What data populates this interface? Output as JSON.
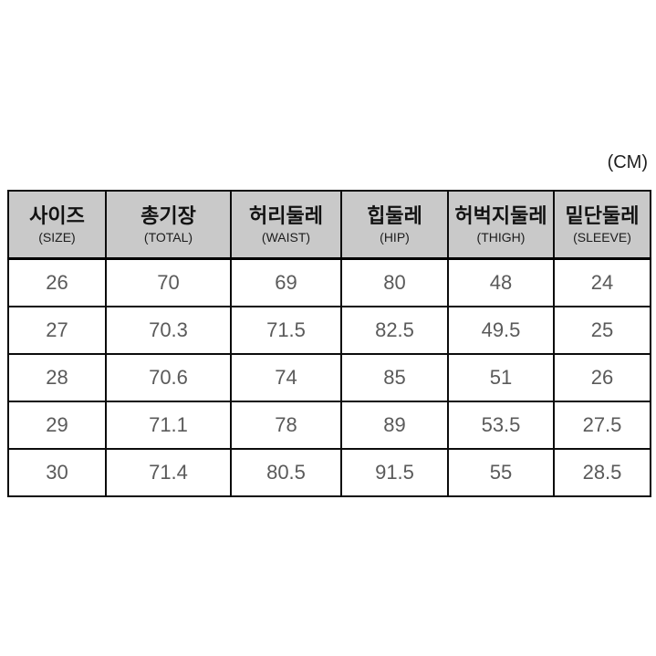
{
  "unit_label": "(CM)",
  "table": {
    "columns": [
      {
        "ko": "사이즈",
        "en": "(SIZE)"
      },
      {
        "ko": "총기장",
        "en": "(TOTAL)"
      },
      {
        "ko": "허리둘레",
        "en": "(WAIST)"
      },
      {
        "ko": "힙둘레",
        "en": "(HIP)"
      },
      {
        "ko": "허벅지둘레",
        "en": "(THIGH)"
      },
      {
        "ko": "밑단둘레",
        "en": "(SLEEVE)"
      }
    ],
    "rows": [
      [
        "26",
        "70",
        "69",
        "80",
        "48",
        "24"
      ],
      [
        "27",
        "70.3",
        "71.5",
        "82.5",
        "49.5",
        "25"
      ],
      [
        "28",
        "70.6",
        "74",
        "85",
        "51",
        "26"
      ],
      [
        "29",
        "71.1",
        "78",
        "89",
        "53.5",
        "27.5"
      ],
      [
        "30",
        "71.4",
        "80.5",
        "91.5",
        "55",
        "28.5"
      ]
    ]
  },
  "colors": {
    "header_background": "#c9c9c9",
    "border": "#0c0c0c",
    "header_text": "#121212",
    "data_text": "#5a5a5a",
    "page_background": "#ffffff"
  }
}
